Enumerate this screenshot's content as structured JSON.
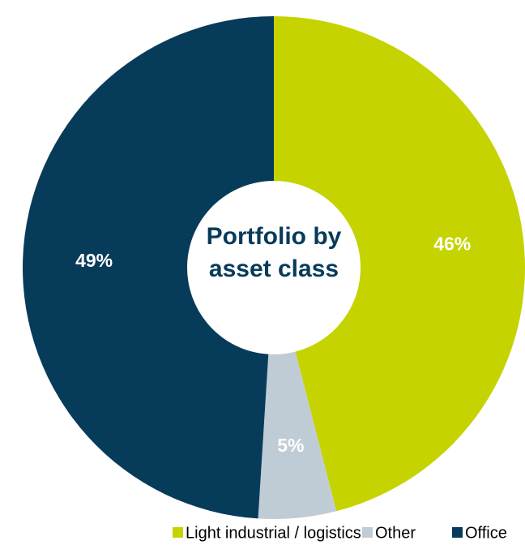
{
  "chart_data": {
    "type": "donut",
    "title": "Portfolio by asset class",
    "categories": [
      "Light industrial / logistics",
      "Other",
      "Office"
    ],
    "values": [
      46,
      5,
      49
    ],
    "value_labels": [
      "46%",
      "5%",
      "49%"
    ],
    "colors": [
      "#c5d300",
      "#c0ccd5",
      "#073b5a"
    ]
  }
}
